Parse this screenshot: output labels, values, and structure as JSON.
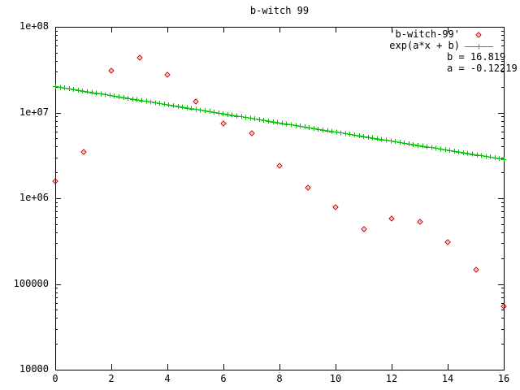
{
  "background": "#ffffff",
  "chart_data": {
    "type": "scatter+line",
    "title": "b-witch 99",
    "y_scale": "log",
    "grid": false,
    "xlim": [
      0,
      16
    ],
    "ylim": [
      10000,
      100000000
    ],
    "ylim_log10": [
      4,
      8
    ],
    "x_ticks": [
      0,
      2,
      4,
      6,
      8,
      10,
      12,
      14,
      16
    ],
    "y_ticks": [
      {
        "value": 10000,
        "label": "10000"
      },
      {
        "value": 100000,
        "label": "100000"
      },
      {
        "value": 1000000,
        "label": "1e+06"
      },
      {
        "value": 10000000,
        "label": "1e+07"
      },
      {
        "value": 100000000,
        "label": "1e+08"
      }
    ],
    "legend_position": "top-right-inside",
    "legend": [
      {
        "label": "'b-witch-99'",
        "marker": "diamond",
        "color": "#cd0000"
      },
      {
        "label": "exp(a*x + b)",
        "marker": "plus-line",
        "color": "#00c000"
      }
    ],
    "annotations": [
      "b = 16.819",
      "a = -0.12219"
    ],
    "axis_color": "#000000",
    "text_color": "#000000",
    "series": [
      {
        "name": "'b-witch-99'",
        "type": "points",
        "marker": "diamond",
        "color": "#cd0000",
        "x": [
          0,
          1,
          2,
          3,
          4,
          5,
          6,
          7,
          8,
          9,
          10,
          11,
          12,
          13,
          14,
          15,
          16
        ],
        "y": [
          1580000,
          3500000,
          31000000,
          44000000,
          27500000,
          13400000,
          7450000,
          5700000,
          2400000,
          1330000,
          790000,
          440000,
          580000,
          530000,
          310000,
          145000,
          55000
        ]
      },
      {
        "name": "exp(a*x + b)",
        "type": "fit_line",
        "marker": "plus",
        "color": "#00c000",
        "fit_params": {
          "a": -0.12219,
          "b": 16.819
        }
      }
    ]
  }
}
